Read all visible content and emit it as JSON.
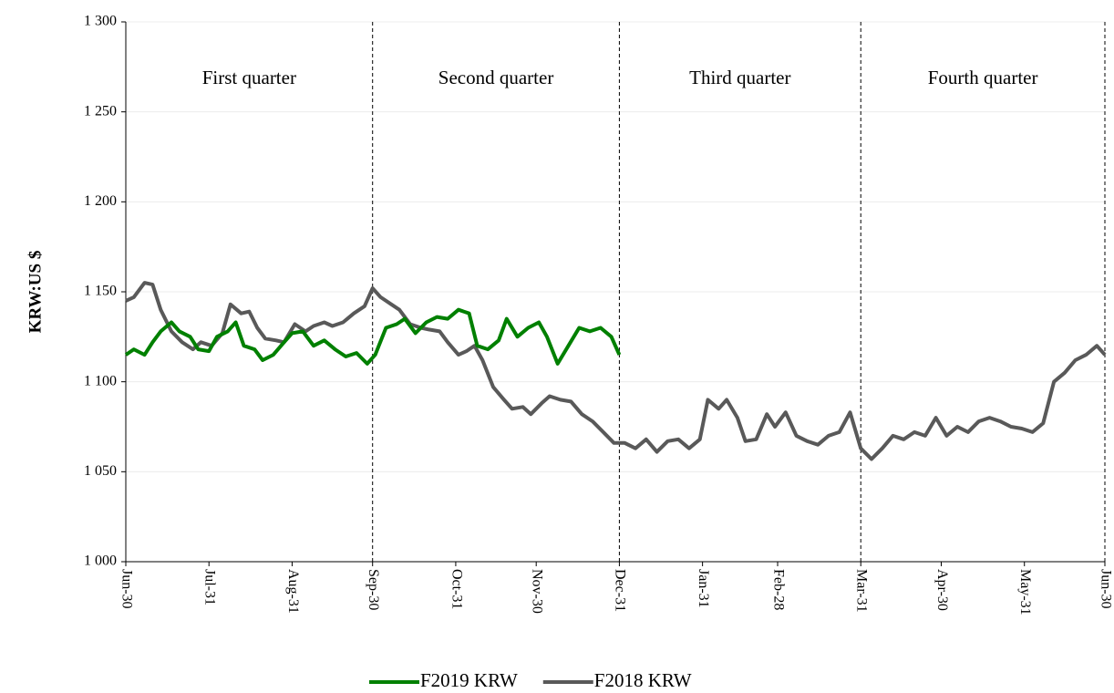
{
  "chart_data": {
    "type": "line",
    "y_label": "KRW:US $",
    "quarter_labels": [
      "First quarter",
      "Second quarter",
      "Third quarter",
      "Fourth quarter"
    ],
    "xticks": [
      "Jun-30",
      "Jul-31",
      "Aug-31",
      "Sep-30",
      "Oct-31",
      "Nov-30",
      "Dec-31",
      "Jan-31",
      "Feb-28",
      "Mar-31",
      "Apr-30",
      "May-31",
      "Jun-30"
    ],
    "ylim": [
      1000,
      1300
    ],
    "yticks": [
      {
        "value": 1000,
        "label": "1 000"
      },
      {
        "value": 1050,
        "label": "1 050"
      },
      {
        "value": 1100,
        "label": "1 100"
      },
      {
        "value": 1150,
        "label": "1 150"
      },
      {
        "value": 1200,
        "label": "1 200"
      },
      {
        "value": 1250,
        "label": "1 250"
      },
      {
        "value": 1300,
        "label": "1 300"
      }
    ],
    "grid": true,
    "legend": "bottom",
    "series": [
      {
        "name": "F2019 KRW",
        "color": "#008000",
        "x": [
          "Jun-30",
          "Jul-03",
          "Jul-07",
          "Jul-10",
          "Jul-13",
          "Jul-17",
          "Jul-20",
          "Jul-24",
          "Jul-27",
          "Jul-31",
          "Aug-03",
          "Aug-07",
          "Aug-10",
          "Aug-13",
          "Aug-17",
          "Aug-20",
          "Aug-24",
          "Aug-28",
          "Aug-31",
          "Sep-04",
          "Sep-08",
          "Sep-12",
          "Sep-16",
          "Sep-20",
          "Sep-24",
          "Sep-28",
          "Oct-01",
          "Oct-05",
          "Oct-09",
          "Oct-12",
          "Oct-16",
          "Oct-20",
          "Oct-24",
          "Oct-28",
          "Nov-01",
          "Nov-05",
          "Nov-08",
          "Nov-12",
          "Nov-16",
          "Nov-19",
          "Nov-23",
          "Nov-27",
          "Dec-01",
          "Dec-04",
          "Dec-08",
          "Dec-12",
          "Dec-16",
          "Dec-20",
          "Dec-24",
          "Dec-28",
          "Dec-31"
        ],
        "values": [
          1115,
          1118,
          1115,
          1122,
          1128,
          1133,
          1128,
          1125,
          1118,
          1117,
          1125,
          1128,
          1133,
          1120,
          1118,
          1112,
          1115,
          1122,
          1127,
          1128,
          1120,
          1123,
          1118,
          1114,
          1116,
          1110,
          1115,
          1130,
          1132,
          1135,
          1127,
          1133,
          1136,
          1135,
          1140,
          1138,
          1120,
          1118,
          1123,
          1135,
          1125,
          1130,
          1133,
          1125,
          1110,
          1120,
          1130,
          1128,
          1130,
          1125,
          1115
        ]
      },
      {
        "name": "F2018 KRW",
        "color": "#595959",
        "x": [
          "Jun-30",
          "Jul-03",
          "Jul-07",
          "Jul-10",
          "Jul-13",
          "Jul-17",
          "Jul-21",
          "Jul-25",
          "Jul-28",
          "Aug-01",
          "Aug-05",
          "Aug-08",
          "Aug-12",
          "Aug-15",
          "Aug-18",
          "Aug-21",
          "Aug-25",
          "Aug-28",
          "Sep-01",
          "Sep-05",
          "Sep-08",
          "Sep-12",
          "Sep-15",
          "Sep-19",
          "Sep-23",
          "Sep-27",
          "Sep-30",
          "Oct-03",
          "Oct-07",
          "Oct-10",
          "Oct-14",
          "Oct-18",
          "Oct-21",
          "Oct-25",
          "Oct-28",
          "Nov-01",
          "Nov-04",
          "Nov-07",
          "Nov-10",
          "Nov-14",
          "Nov-18",
          "Nov-21",
          "Nov-25",
          "Nov-28",
          "Dec-02",
          "Dec-05",
          "Dec-09",
          "Dec-13",
          "Dec-17",
          "Dec-21",
          "Dec-25",
          "Dec-29",
          "Jan-02",
          "Jan-06",
          "Jan-10",
          "Jan-14",
          "Jan-18",
          "Jan-22",
          "Jan-26",
          "Jan-30",
          "Feb-02",
          "Feb-06",
          "Feb-09",
          "Feb-13",
          "Feb-16",
          "Feb-20",
          "Feb-24",
          "Feb-27",
          "Mar-03",
          "Mar-07",
          "Mar-11",
          "Mar-15",
          "Mar-19",
          "Mar-23",
          "Mar-27",
          "Mar-31",
          "Apr-04",
          "Apr-08",
          "Apr-12",
          "Apr-16",
          "Apr-20",
          "Apr-24",
          "Apr-28",
          "May-02",
          "May-06",
          "May-10",
          "May-14",
          "May-18",
          "May-22",
          "May-26",
          "May-30",
          "Jun-03",
          "Jun-07",
          "Jun-11",
          "Jun-15",
          "Jun-19",
          "Jun-23",
          "Jun-27",
          "Jun-30"
        ],
        "values": [
          1145,
          1147,
          1155,
          1154,
          1140,
          1128,
          1122,
          1118,
          1122,
          1120,
          1127,
          1143,
          1138,
          1139,
          1130,
          1124,
          1123,
          1122,
          1132,
          1128,
          1131,
          1133,
          1131,
          1133,
          1138,
          1142,
          1152,
          1147,
          1143,
          1140,
          1132,
          1130,
          1129,
          1128,
          1122,
          1115,
          1117,
          1120,
          1112,
          1097,
          1090,
          1085,
          1086,
          1082,
          1088,
          1092,
          1090,
          1089,
          1082,
          1078,
          1072,
          1066,
          1066,
          1063,
          1068,
          1061,
          1067,
          1068,
          1063,
          1068,
          1090,
          1085,
          1090,
          1080,
          1067,
          1068,
          1082,
          1075,
          1083,
          1070,
          1067,
          1065,
          1070,
          1072,
          1083,
          1063,
          1057,
          1063,
          1070,
          1068,
          1072,
          1070,
          1080,
          1070,
          1075,
          1072,
          1078,
          1080,
          1078,
          1075,
          1074,
          1072,
          1077,
          1100,
          1105,
          1112,
          1115,
          1120,
          1115
        ]
      }
    ]
  }
}
